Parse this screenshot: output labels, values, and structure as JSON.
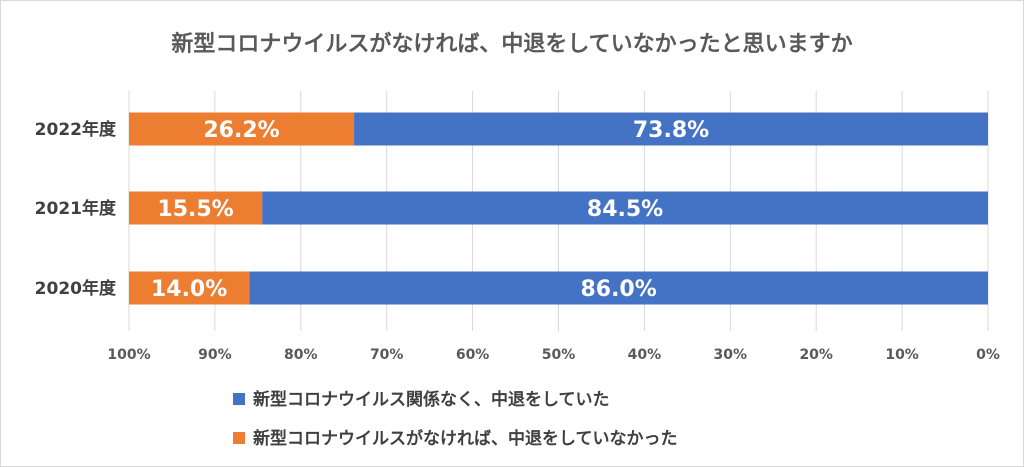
{
  "chart_data": {
    "type": "bar",
    "orientation": "horizontal-stacked-100",
    "title": "新型コロナウイルスがなければ、中退をしていなかったと思いますか",
    "categories": [
      "2022年度",
      "2021年度",
      "2020年度"
    ],
    "series": [
      {
        "name": "新型コロナウイルス関係なく、中退をしていた",
        "values": [
          73.8,
          84.5,
          86.0
        ],
        "labels": [
          "73.8%",
          "84.5%",
          "86.0%"
        ],
        "color": "#4472c4"
      },
      {
        "name": "新型コロナウイルスがなければ、中退をしていなかった",
        "values": [
          26.2,
          15.5,
          14.0
        ],
        "labels": [
          "26.2%",
          "15.5%",
          "14.0%"
        ],
        "color": "#ed7d31"
      }
    ],
    "x_ticks": [
      "100%",
      "90%",
      "80%",
      "70%",
      "60%",
      "50%",
      "40%",
      "30%",
      "20%",
      "10%",
      "0%"
    ],
    "xlim": [
      0,
      100
    ],
    "x_reversed": true,
    "grid": true,
    "legend_position": "bottom",
    "gridline_color": "#d9d9d9"
  }
}
